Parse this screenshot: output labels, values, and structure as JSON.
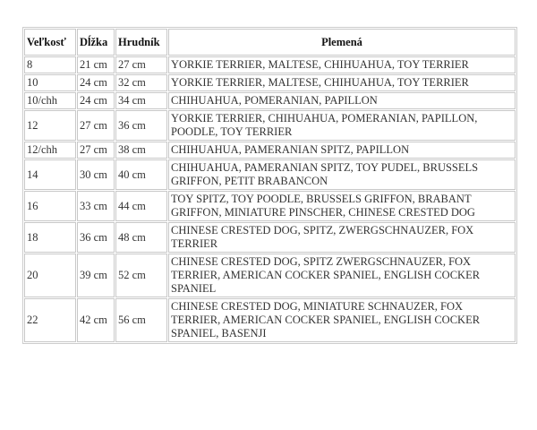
{
  "table": {
    "headers": [
      "Veľkosť",
      "Dĺžka",
      "Hrudník",
      "Plemená"
    ],
    "rows": [
      [
        "8",
        "21 cm",
        "27 cm",
        "YORKIE TERRIER, MALTESE, CHIHUAHUA, TOY TERRIER"
      ],
      [
        "10",
        "24 cm",
        "32 cm",
        "YORKIE TERRIER, MALTESE, CHIHUAHUA, TOY TERRIER"
      ],
      [
        "10/chh",
        "24 cm",
        "34 cm",
        "CHIHUAHUA, POMERANIAN, PAPILLON"
      ],
      [
        "12",
        "27 cm",
        "36 cm",
        "YORKIE TERRIER, CHIHUAHUA, POMERANIAN, PAPILLON, POODLE, TOY TERRIER"
      ],
      [
        "12/chh",
        "27 cm",
        "38 cm",
        "CHIHUAHUA, PAMERANIAN SPITZ, PAPILLON"
      ],
      [
        "14",
        "30 cm",
        "40 cm",
        "CHIHUAHUA, PAMERANIAN SPITZ, TOY PUDEL, BRUSSELS GRIFFON, PETIT BRABANCON"
      ],
      [
        "16",
        "33 cm",
        "44 cm",
        "TOY SPITZ, TOY POODLE, BRUSSELS GRIFFON, BRABANT GRIFFON, MINIATURE PINSCHER, CHINESE CRESTED DOG"
      ],
      [
        "18",
        "36 cm",
        "48 cm",
        "CHINESE CRESTED DOG, SPITZ, ZWERGSCHNAUZER, FOX TERRIER"
      ],
      [
        "20",
        "39 cm",
        "52 cm",
        "CHINESE CRESTED DOG, SPITZ ZWERGSCHNAUZER, FOX TERRIER, AMERICAN COCKER SPANIEL, ENGLISH COCKER SPANIEL"
      ],
      [
        "22",
        "42 cm",
        "56 cm",
        "CHINESE CRESTED DOG, MINIATURE SCHNAUZER, FOX TERRIER, AMERICAN COCKER SPANIEL, ENGLISH COCKER SPANIEL, BASENJI"
      ]
    ]
  }
}
